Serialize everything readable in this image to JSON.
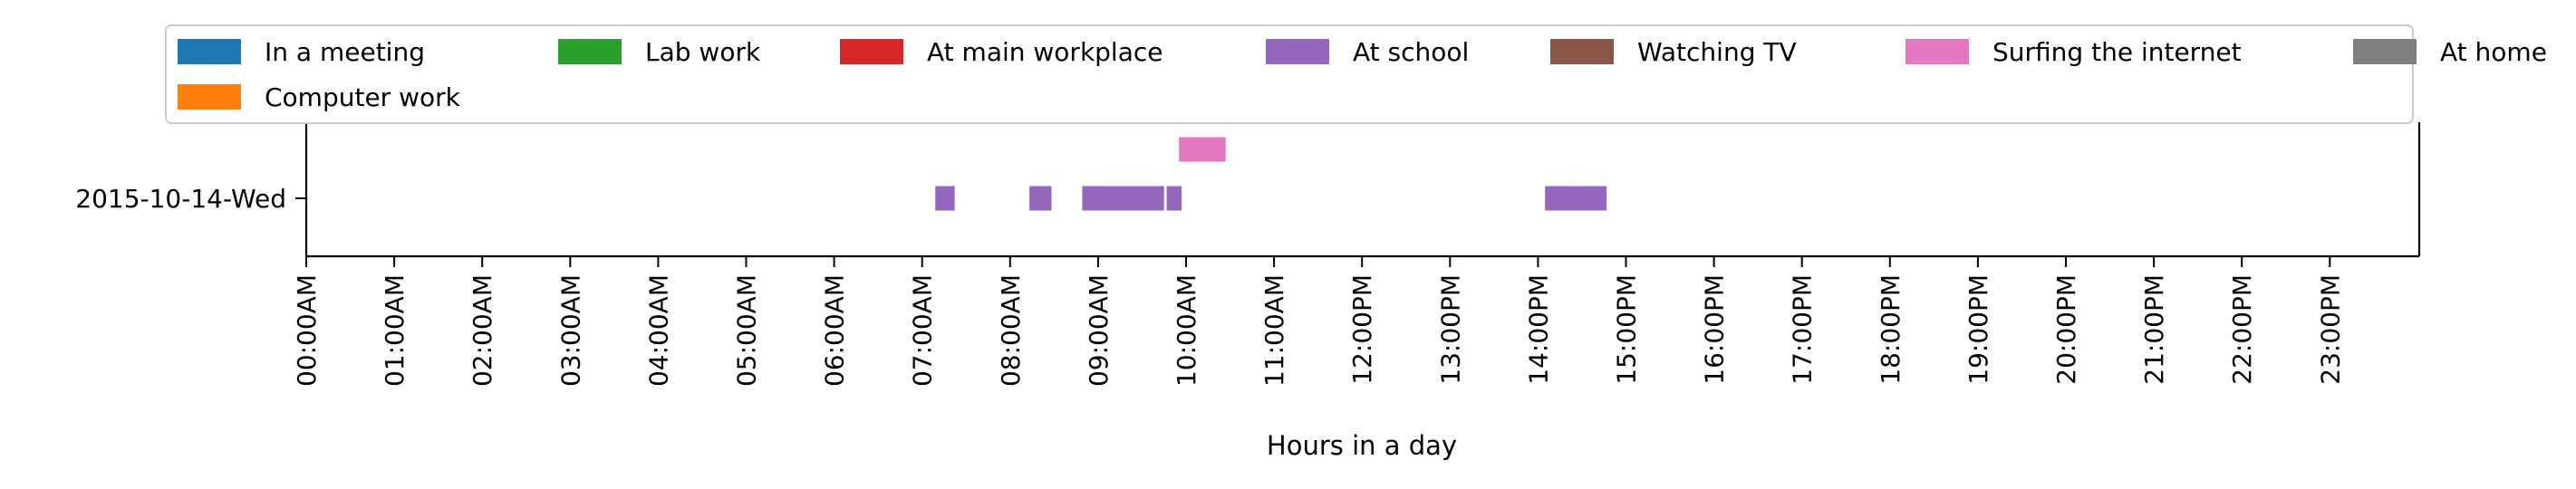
{
  "chart_data": {
    "type": "timeline",
    "xlabel": "Hours in a day",
    "ylabel": "",
    "title": "",
    "xlim": [
      0,
      24
    ],
    "x_ticks": [
      "00:00AM",
      "01:00AM",
      "02:00AM",
      "03:00AM",
      "04:00AM",
      "05:00AM",
      "06:00AM",
      "07:00AM",
      "08:00AM",
      "09:00AM",
      "10:00AM",
      "11:00AM",
      "12:00PM",
      "13:00PM",
      "14:00PM",
      "15:00PM",
      "16:00PM",
      "17:00PM",
      "18:00PM",
      "19:00PM",
      "20:00PM",
      "21:00PM",
      "22:00PM",
      "23:00PM"
    ],
    "rows": [
      "2015-10-14-Wed"
    ],
    "legend_position": "top",
    "grid": false,
    "legend": [
      {
        "label": "In a meeting",
        "color": "#1f77b4"
      },
      {
        "label": "Lab work",
        "color": "#2ca02c"
      },
      {
        "label": "At main workplace",
        "color": "#d62728"
      },
      {
        "label": "At school",
        "color": "#9467bd"
      },
      {
        "label": "Watching TV",
        "color": "#8c564b"
      },
      {
        "label": "Surfing the internet",
        "color": "#e377c2"
      },
      {
        "label": "At home",
        "color": "#7f7f7f"
      },
      {
        "label": "Computer work",
        "color": "#ff7f0e"
      }
    ],
    "segments": [
      {
        "activity": "At school",
        "row": "2015-10-14-Wed",
        "start": 7.15,
        "end": 7.37
      },
      {
        "activity": "At school",
        "row": "2015-10-14-Wed",
        "start": 8.22,
        "end": 8.47
      },
      {
        "activity": "At school",
        "row": "2015-10-14-Wed",
        "start": 8.82,
        "end": 9.75
      },
      {
        "activity": "At school",
        "row": "2015-10-14-Wed",
        "start": 9.78,
        "end": 9.95
      },
      {
        "activity": "Surfing the internet",
        "row": "2015-10-14-Wed",
        "start": 9.92,
        "end": 10.45
      },
      {
        "activity": "At school",
        "row": "2015-10-14-Wed",
        "start": 14.08,
        "end": 14.78
      }
    ]
  }
}
